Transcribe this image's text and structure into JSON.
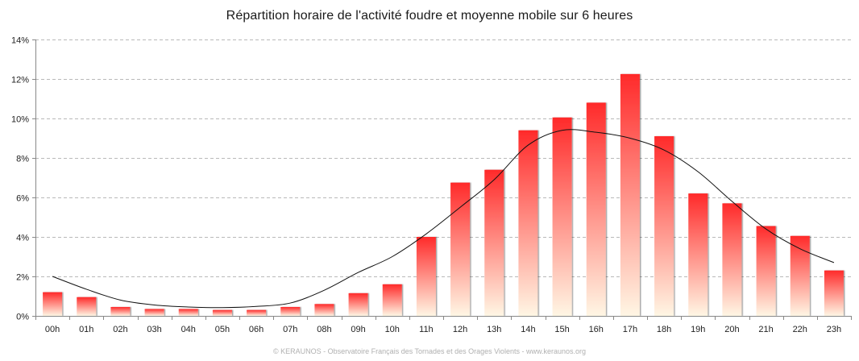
{
  "chart_data": {
    "type": "bar",
    "title": "Répartition horaire de l'activité foudre et moyenne mobile sur 6 heures",
    "categories": [
      "00h",
      "01h",
      "02h",
      "03h",
      "04h",
      "05h",
      "06h",
      "07h",
      "08h",
      "09h",
      "10h",
      "11h",
      "12h",
      "13h",
      "14h",
      "15h",
      "16h",
      "17h",
      "18h",
      "19h",
      "20h",
      "21h",
      "22h",
      "23h"
    ],
    "series": [
      {
        "type": "bar",
        "values": [
          1.2,
          0.95,
          0.45,
          0.35,
          0.35,
          0.3,
          0.3,
          0.45,
          0.6,
          1.15,
          1.6,
          4.0,
          6.75,
          7.4,
          9.4,
          10.05,
          10.8,
          12.25,
          9.1,
          6.2,
          5.7,
          4.55,
          4.05,
          2.3
        ],
        "color_top": "#ff2a2a",
        "color_bottom": "#fff6e4"
      },
      {
        "type": "line",
        "values": [
          2.0,
          1.35,
          0.8,
          0.55,
          0.45,
          0.42,
          0.48,
          0.65,
          1.3,
          2.2,
          3.0,
          4.15,
          5.5,
          6.9,
          8.65,
          9.4,
          9.3,
          9.0,
          8.4,
          7.3,
          5.8,
          4.4,
          3.4,
          2.7
        ],
        "color": "#111111"
      }
    ],
    "ylim": [
      0,
      14
    ],
    "yticks": [
      0,
      2,
      4,
      6,
      8,
      10,
      12,
      14
    ],
    "ytick_labels": [
      "0%",
      "2%",
      "4%",
      "6%",
      "8%",
      "10%",
      "12%",
      "14%"
    ],
    "grid": true,
    "legend": "none"
  },
  "footer": "© KERAUNOS - Observatoire Français des Tornades et des Orages Violents - www.keraunos.org"
}
